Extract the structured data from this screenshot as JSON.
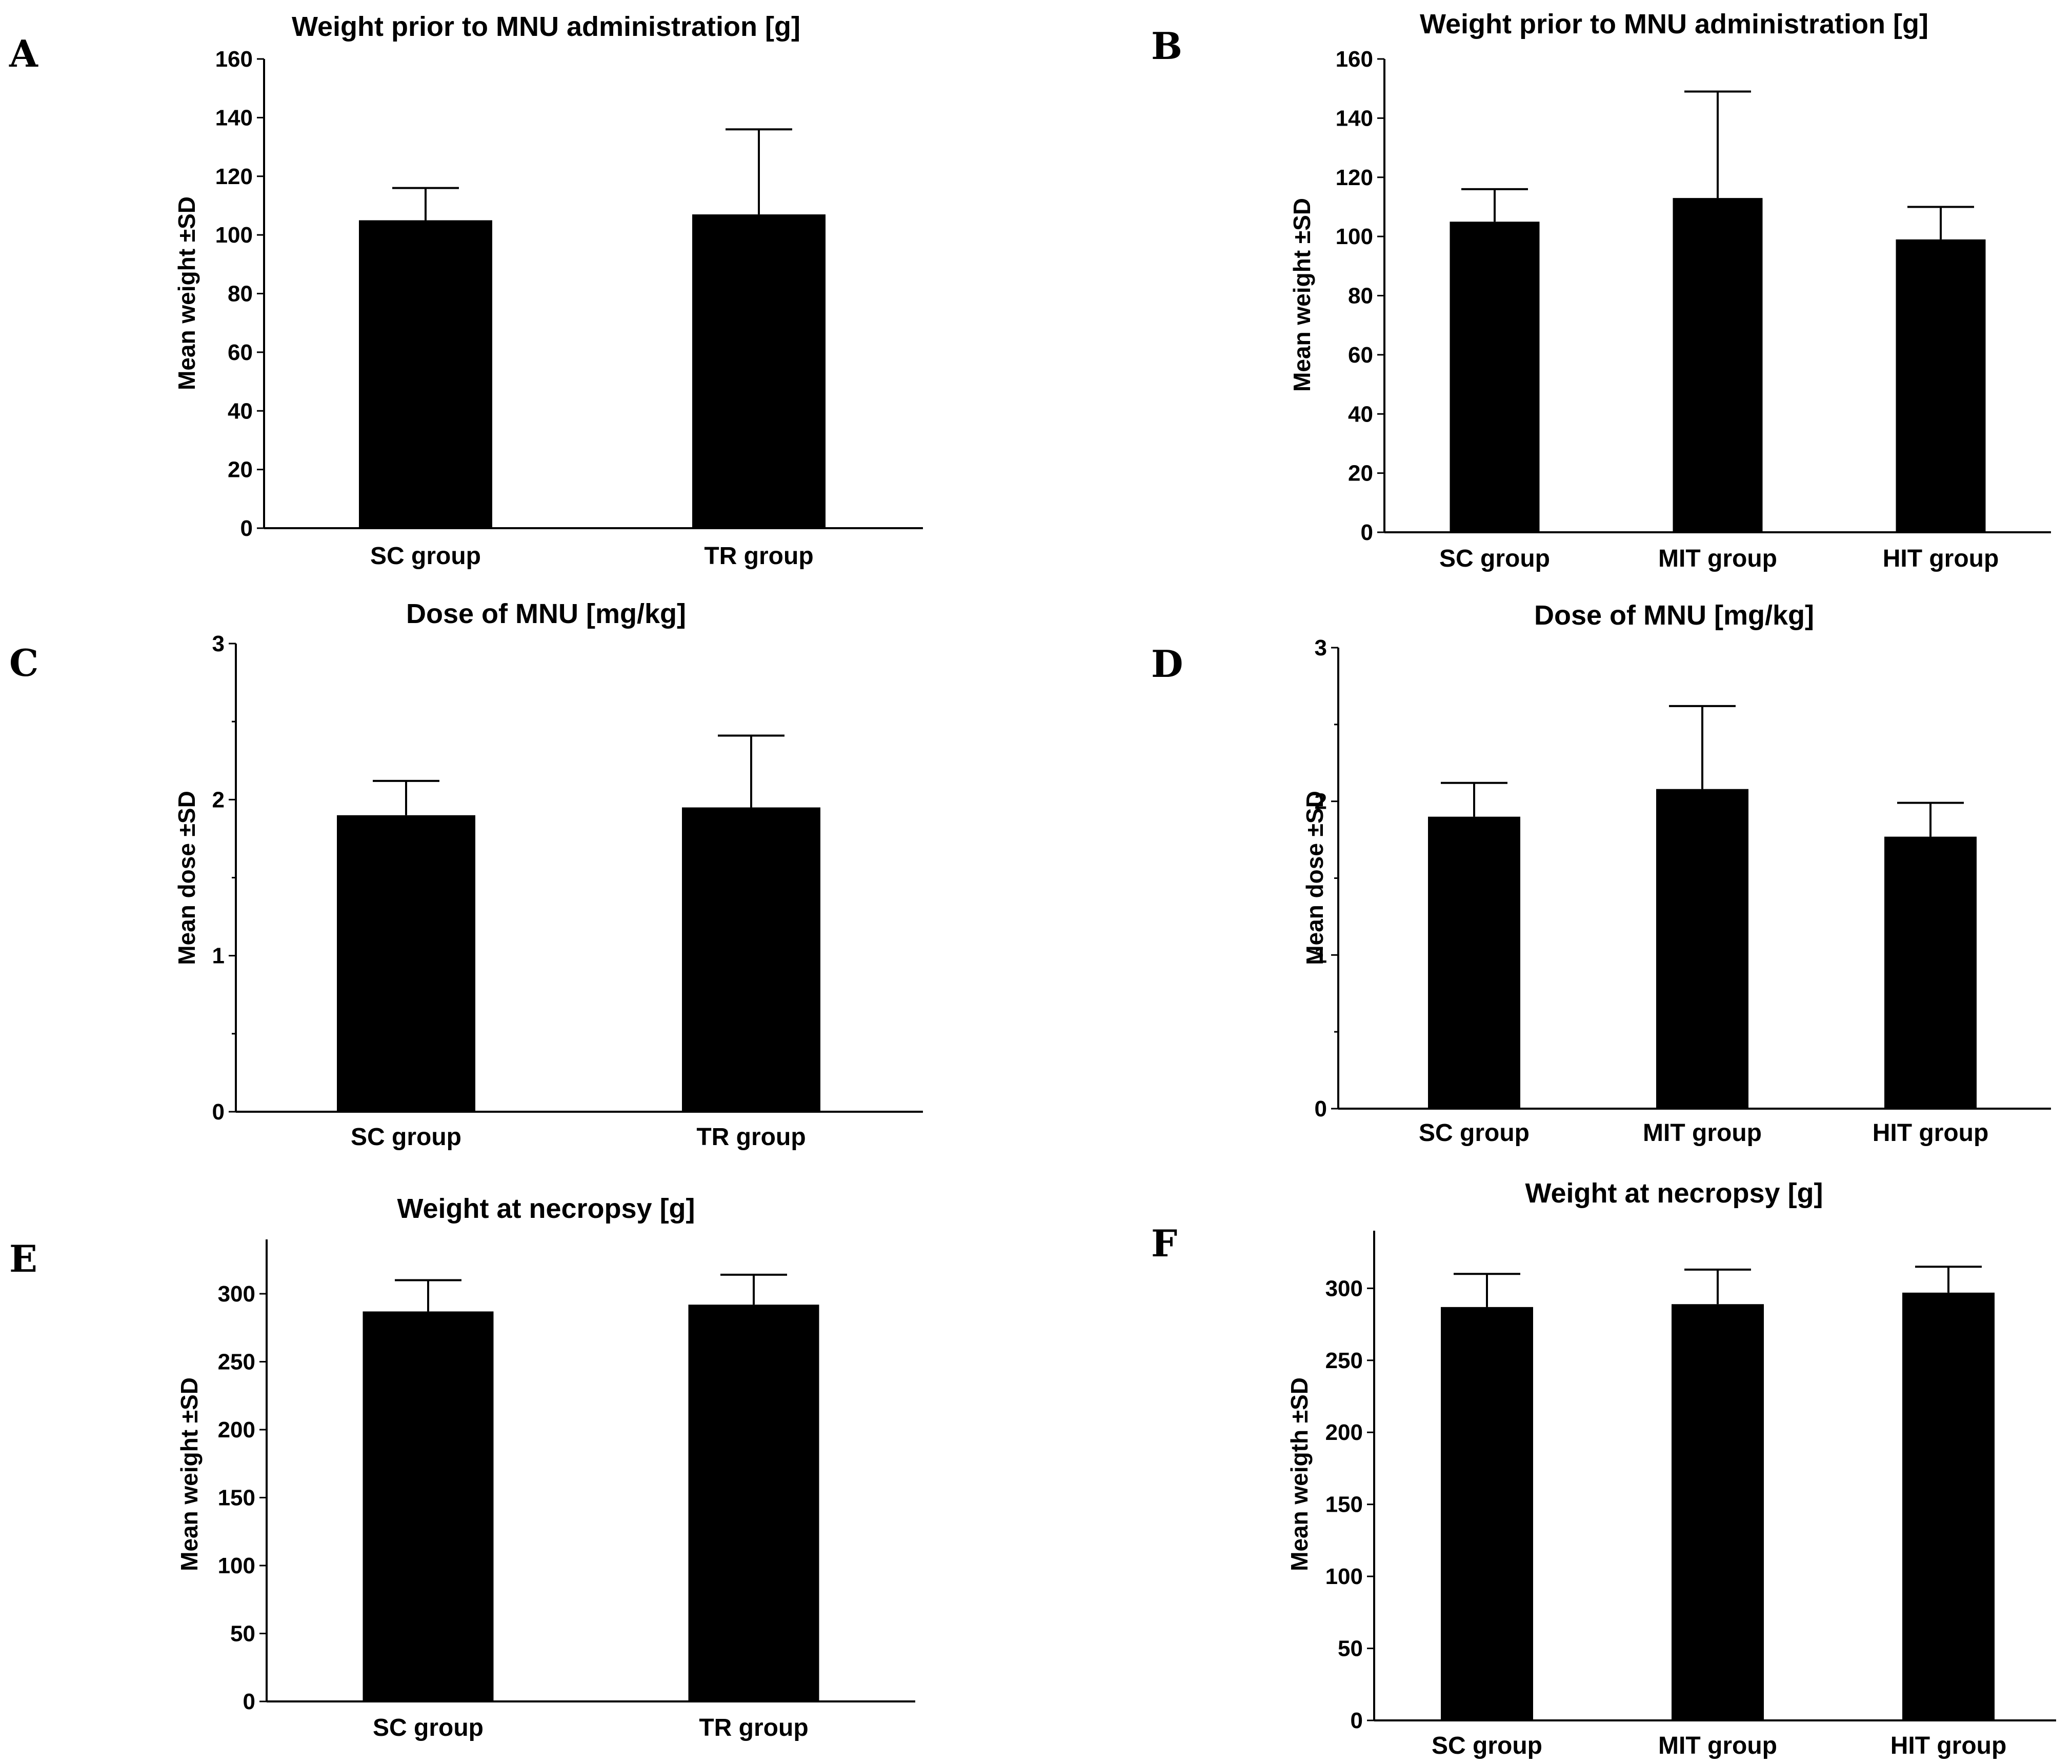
{
  "chart_data": [
    {
      "panel": "A",
      "type": "bar",
      "title": "Weight prior to MNU administration [g]",
      "ylabel": "Mean weight ±SD",
      "xlabel": "",
      "categories": [
        "SC group",
        "TR group"
      ],
      "values": [
        105,
        107
      ],
      "errors": [
        11,
        29
      ],
      "ylim": [
        0,
        160
      ],
      "yticks": [
        0,
        20,
        40,
        60,
        80,
        100,
        120,
        140,
        160
      ],
      "minor_ticks": false,
      "color": "#000000"
    },
    {
      "panel": "B",
      "type": "bar",
      "title": "Weight prior to MNU administration [g]",
      "ylabel": "Mean weight ±SD",
      "xlabel": "",
      "categories": [
        "SC group",
        "MIT group",
        "HIT group"
      ],
      "values": [
        105,
        113,
        99
      ],
      "errors": [
        11,
        36,
        11
      ],
      "ylim": [
        0,
        160
      ],
      "yticks": [
        0,
        20,
        40,
        60,
        80,
        100,
        120,
        140,
        160
      ],
      "minor_ticks": false,
      "color": "#000000"
    },
    {
      "panel": "C",
      "type": "bar",
      "title": "Dose of MNU [mg/kg]",
      "ylabel": "Mean dose ±SD",
      "xlabel": "",
      "categories": [
        "SC group",
        "TR group"
      ],
      "values": [
        1.9,
        1.95
      ],
      "errors": [
        0.22,
        0.46
      ],
      "ylim": [
        0,
        3
      ],
      "yticks": [
        0,
        1,
        2,
        3
      ],
      "minor_ticks": true,
      "color": "#000000"
    },
    {
      "panel": "D",
      "type": "bar",
      "title": "Dose of MNU [mg/kg]",
      "ylabel": "Mean dose ±SD",
      "xlabel": "",
      "categories": [
        "SC group",
        "MIT group",
        "HIT group"
      ],
      "values": [
        1.9,
        2.08,
        1.77
      ],
      "errors": [
        0.22,
        0.54,
        0.22
      ],
      "ylim": [
        0,
        3
      ],
      "yticks": [
        0,
        1,
        2,
        3
      ],
      "minor_ticks": true,
      "color": "#000000"
    },
    {
      "panel": "E",
      "type": "bar",
      "title": "Weight at necropsy [g]",
      "ylabel": "Mean weight ±SD",
      "xlabel": "",
      "categories": [
        "SC group",
        "TR group"
      ],
      "values": [
        287,
        292
      ],
      "errors": [
        23,
        22
      ],
      "ylim": [
        0,
        340
      ],
      "yticks": [
        0,
        50,
        100,
        150,
        200,
        250,
        300
      ],
      "minor_ticks": false,
      "color": "#000000"
    },
    {
      "panel": "F",
      "type": "bar",
      "title": "Weight at necropsy [g]",
      "ylabel": "Mean weigth ±SD",
      "xlabel": "",
      "categories": [
        "SC group",
        "MIT group",
        "HIT group"
      ],
      "values": [
        287,
        289,
        297
      ],
      "errors": [
        23,
        24,
        18
      ],
      "ylim": [
        0,
        340
      ],
      "yticks": [
        0,
        50,
        100,
        150,
        200,
        250,
        300
      ],
      "minor_ticks": false,
      "color": "#000000"
    }
  ]
}
